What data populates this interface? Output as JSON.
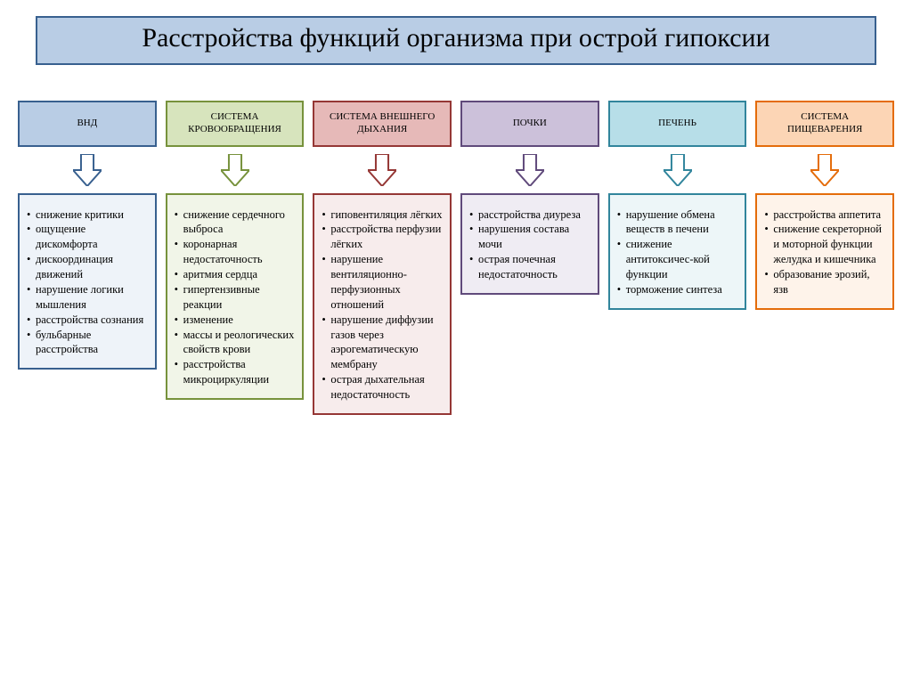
{
  "title": "Расстройства функций организма при острой гипоксии",
  "title_box": {
    "bg": "#b9cde5",
    "border": "#38608f"
  },
  "arrow": {
    "width": 32,
    "height": 36
  },
  "columns": [
    {
      "header": "ВНД",
      "header_style": {
        "bg": "#b9cde5",
        "border": "#38608f"
      },
      "arrow_style": {
        "fill": "#ffffff",
        "stroke": "#38608f"
      },
      "content_style": {
        "bg": "#eef3f9",
        "border": "#38608f"
      },
      "items": [
        "снижение критики",
        "ощущение дискомфорта",
        "дискоординация движений",
        "нарушение логики мышления",
        "расстройства сознания",
        "бульбарные расстройства"
      ]
    },
    {
      "header": "СИСТЕМА КРОВООБРАЩЕНИЯ",
      "header_style": {
        "bg": "#d7e4bd",
        "border": "#77923c"
      },
      "arrow_style": {
        "fill": "#ffffff",
        "stroke": "#77923c"
      },
      "content_style": {
        "bg": "#f1f5e8",
        "border": "#77923c"
      },
      "items": [
        "снижение сердечного выброса",
        "коронарная недостаточность",
        "аритмия сердца",
        "гипертензивные реакции",
        "изменение",
        "массы и реологических свойств крови",
        "расстройства микроциркуляции"
      ]
    },
    {
      "header": "СИСТЕМА ВНЕШНЕГО ДЫХАНИЯ",
      "header_style": {
        "bg": "#e6b9b8",
        "border": "#953735"
      },
      "arrow_style": {
        "fill": "#ffffff",
        "stroke": "#953735"
      },
      "content_style": {
        "bg": "#f7ecec",
        "border": "#953735"
      },
      "items": [
        "гиповентиляция лёгких",
        "расстройства перфузии лёгких",
        "нарушение вентиляционно-перфузионных отношений",
        "нарушение диффузии газов через аэрогематическую мембрану",
        "острая дыхательная недостаточность"
      ]
    },
    {
      "header": "ПОЧКИ",
      "header_style": {
        "bg": "#ccc1da",
        "border": "#604a7b"
      },
      "arrow_style": {
        "fill": "#ffffff",
        "stroke": "#604a7b"
      },
      "content_style": {
        "bg": "#efecf3",
        "border": "#604a7b"
      },
      "items": [
        "расстройства диуреза",
        "нарушения состава мочи",
        "острая почечная недостаточность"
      ]
    },
    {
      "header": "ПЕЧЕНЬ",
      "header_style": {
        "bg": "#b7dee8",
        "border": "#31859c"
      },
      "arrow_style": {
        "fill": "#ffffff",
        "stroke": "#31859c"
      },
      "content_style": {
        "bg": "#edf6f8",
        "border": "#31859c"
      },
      "items": [
        "нарушение обмена веществ в печени",
        "снижение антитоксичес-кой функции",
        "торможение синтеза"
      ]
    },
    {
      "header": "СИСТЕМА ПИЩЕВАРЕНИЯ",
      "header_style": {
        "bg": "#fcd5b5",
        "border": "#e46c0a"
      },
      "arrow_style": {
        "fill": "#ffffff",
        "stroke": "#e46c0a"
      },
      "content_style": {
        "bg": "#fef3ea",
        "border": "#e46c0a"
      },
      "items": [
        "расстройства аппетита",
        "снижение секреторной и моторной функции желудка и кишечника",
        "образование эрозий, язв"
      ]
    }
  ]
}
